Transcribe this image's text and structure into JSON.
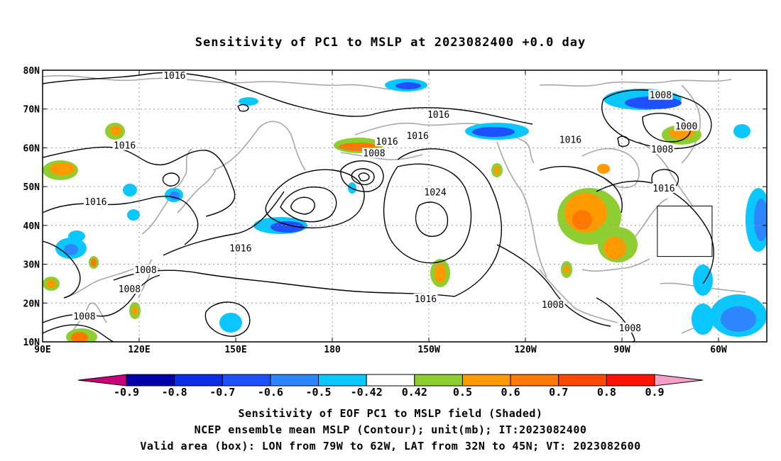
{
  "title": "Sensitivity of PC1 to MSLP at 2023082400 +0.0 day",
  "captions": [
    "Sensitivity of EOF PC1 to MSLP field (Shaded)",
    "NCEP ensemble mean MSLP (Contour); unit(mb); IT:2023082400",
    "Valid area (box): LON from 79W to 62W, LAT from 32N to 45N; VT: 2023082600"
  ],
  "map": {
    "lon_range": [
      90,
      315
    ],
    "lat_range": [
      10,
      80
    ],
    "lat_ticks": [
      {
        "lat": 80,
        "label": "80N"
      },
      {
        "lat": 70,
        "label": "70N"
      },
      {
        "lat": 60,
        "label": "60N"
      },
      {
        "lat": 50,
        "label": "50N"
      },
      {
        "lat": 40,
        "label": "40N"
      },
      {
        "lat": 30,
        "label": "30N"
      },
      {
        "lat": 20,
        "label": "20N"
      },
      {
        "lat": 10,
        "label": "10N"
      }
    ],
    "lon_ticks": [
      {
        "lon": 90,
        "label": "90E"
      },
      {
        "lon": 120,
        "label": "120E"
      },
      {
        "lon": 150,
        "label": "150E"
      },
      {
        "lon": 180,
        "label": "180"
      },
      {
        "lon": 210,
        "label": "150W"
      },
      {
        "lon": 240,
        "label": "120W"
      },
      {
        "lon": 270,
        "label": "90W"
      },
      {
        "lon": 300,
        "label": "60W"
      }
    ],
    "grid_lines": true,
    "valid_box": {
      "lon": [
        281,
        298
      ],
      "lat": [
        32,
        45
      ]
    },
    "contour_labels": [
      {
        "text": "1016",
        "lon": 115.5,
        "lat": 60.5
      },
      {
        "text": "1016",
        "lon": 106.5,
        "lat": 46.0
      },
      {
        "text": "1016",
        "lon": 131.0,
        "lat": 78.5
      },
      {
        "text": "1016",
        "lon": 151.5,
        "lat": 34.0
      },
      {
        "text": "1016",
        "lon": 197.0,
        "lat": 61.5
      },
      {
        "text": "1016",
        "lon": 213.0,
        "lat": 68.5
      },
      {
        "text": "1016",
        "lon": 206.5,
        "lat": 63.0
      },
      {
        "text": "1016",
        "lon": 209.0,
        "lat": 21.0
      },
      {
        "text": "1016",
        "lon": 254.0,
        "lat": 62.0
      },
      {
        "text": "1016",
        "lon": 283.0,
        "lat": 49.5
      },
      {
        "text": "1008",
        "lon": 103.0,
        "lat": 16.5
      },
      {
        "text": "1008",
        "lon": 117.0,
        "lat": 23.5
      },
      {
        "text": "1008",
        "lon": 122.0,
        "lat": 28.5
      },
      {
        "text": "1008",
        "lon": 193.0,
        "lat": 58.5
      },
      {
        "text": "1008",
        "lon": 248.5,
        "lat": 19.5
      },
      {
        "text": "1008",
        "lon": 272.5,
        "lat": 13.5
      },
      {
        "text": "1008",
        "lon": 282.5,
        "lat": 59.5
      },
      {
        "text": "1008",
        "lon": 282.0,
        "lat": 73.5
      },
      {
        "text": "1000",
        "lon": 290.0,
        "lat": 65.5
      },
      {
        "text": "1024",
        "lon": 212.0,
        "lat": 48.5
      }
    ],
    "legend_colors": {
      "neg_0.9": "#c8007a",
      "neg_0.8": "#0000aa",
      "neg_0.7": "#0a2ee6",
      "neg_0.6": "#1f50ff",
      "neg_0.5": "#2e86ff",
      "neg_0.42": "#0ac8ff",
      "pos_0.42": "#8fce30",
      "pos_0.5": "#ff9a00",
      "pos_0.6": "#ff7800",
      "pos_0.7": "#ff4a00",
      "pos_0.8": "#ff1400",
      "pos_0.9": "#f4a0c8",
      "coast": "#a8a8a8",
      "contour": "#000000"
    }
  },
  "colorbar": {
    "labels": [
      "-0.9",
      "-0.8",
      "-0.7",
      "-0.6",
      "-0.5",
      "-0.42",
      "0.42",
      "0.5",
      "0.6",
      "0.7",
      "0.8",
      "0.9"
    ],
    "colors": [
      "#0000aa",
      "#0a2ee6",
      "#1f50ff",
      "#2e86ff",
      "#0ac8ff",
      "#ffffff",
      "#8fce30",
      "#ff9a00",
      "#ff7800",
      "#ff4a00",
      "#ff1400"
    ],
    "low_end_color": "#c8007a",
    "high_end_color": "#f4a0c8"
  }
}
